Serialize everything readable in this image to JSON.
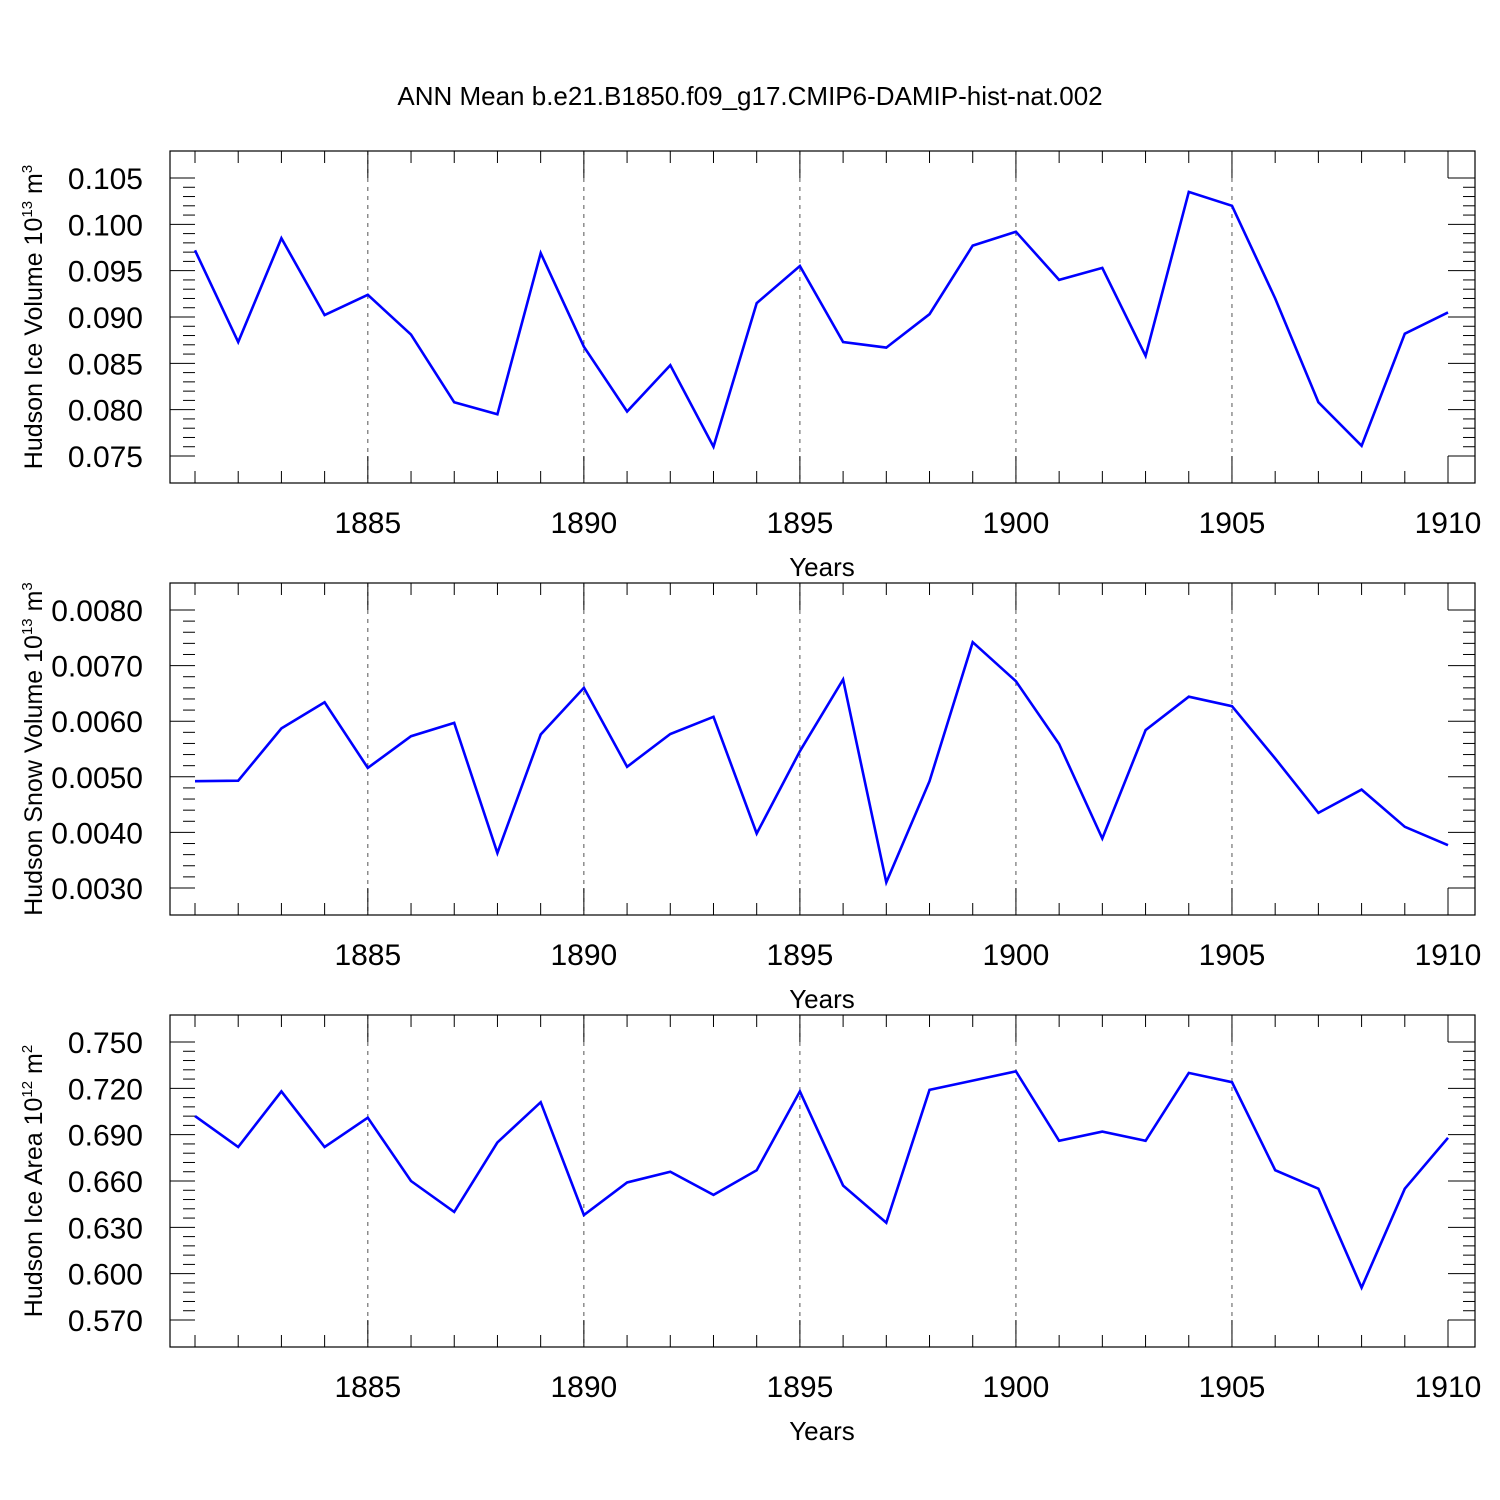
{
  "title": "ANN Mean b.e21.B1850.f09_g17.CMIP6-DAMIP-hist-nat.002",
  "chart_data": [
    {
      "type": "line",
      "ylabel": "Hudson Ice Volume 10",
      "ylabel_exp": "13",
      "ylabel_unit": " m",
      "ylabel_unit_exp": "3",
      "xlabel": "Years",
      "xlim": [
        1881,
        1910
      ],
      "ylim": [
        0.075,
        0.105
      ],
      "yticks": [
        0.075,
        0.08,
        0.085,
        0.09,
        0.095,
        0.1,
        0.105
      ],
      "ytick_labels": [
        "0.075",
        "0.080",
        "0.085",
        "0.090",
        "0.095",
        "0.100",
        "0.105"
      ],
      "xticks": [
        1885,
        1890,
        1895,
        1900,
        1905,
        1910
      ],
      "xtick_labels": [
        "1885",
        "1890",
        "1895",
        "1900",
        "1905",
        "1910"
      ],
      "grid": "vertical dashed at major x ticks",
      "color": "#0000ff",
      "x": [
        1881,
        1882,
        1883,
        1884,
        1885,
        1886,
        1887,
        1888,
        1889,
        1890,
        1891,
        1892,
        1893,
        1894,
        1895,
        1896,
        1897,
        1898,
        1899,
        1900,
        1901,
        1902,
        1903,
        1904,
        1905,
        1906,
        1907,
        1908,
        1909,
        1910
      ],
      "values": [
        0.0972,
        0.0873,
        0.0985,
        0.0902,
        0.0924,
        0.0881,
        0.0808,
        0.0795,
        0.0969,
        0.0868,
        0.0798,
        0.0848,
        0.076,
        0.0915,
        0.0955,
        0.0873,
        0.0867,
        0.0903,
        0.0977,
        0.0992,
        0.094,
        0.0953,
        0.0858,
        0.1035,
        0.102,
        0.092,
        0.0808,
        0.0761,
        0.0882,
        0.0905
      ]
    },
    {
      "type": "line",
      "ylabel": "Hudson Snow Volume 10",
      "ylabel_exp": "13",
      "ylabel_unit": " m",
      "ylabel_unit_exp": "3",
      "xlabel": "Years",
      "xlim": [
        1881,
        1910
      ],
      "ylim": [
        0.003,
        0.008
      ],
      "yticks": [
        0.003,
        0.004,
        0.005,
        0.006,
        0.007,
        0.008
      ],
      "ytick_labels": [
        "0.0030",
        "0.0040",
        "0.0050",
        "0.0060",
        "0.0070",
        "0.0080"
      ],
      "xticks": [
        1885,
        1890,
        1895,
        1900,
        1905,
        1910
      ],
      "xtick_labels": [
        "1885",
        "1890",
        "1895",
        "1900",
        "1905",
        "1910"
      ],
      "grid": "vertical dashed at major x ticks",
      "color": "#0000ff",
      "x": [
        1881,
        1882,
        1883,
        1884,
        1885,
        1886,
        1887,
        1888,
        1889,
        1890,
        1891,
        1892,
        1893,
        1894,
        1895,
        1896,
        1897,
        1898,
        1899,
        1900,
        1901,
        1902,
        1903,
        1904,
        1905,
        1906,
        1907,
        1908,
        1909,
        1910
      ],
      "values": [
        0.00492,
        0.00493,
        0.00587,
        0.00634,
        0.00516,
        0.00573,
        0.00597,
        0.00363,
        0.00576,
        0.0066,
        0.00518,
        0.00577,
        0.00608,
        0.00398,
        0.00546,
        0.00675,
        0.0031,
        0.00492,
        0.00742,
        0.00672,
        0.00559,
        0.00389,
        0.00584,
        0.00644,
        0.00627,
        0.00533,
        0.00435,
        0.00477,
        0.0041,
        0.00377
      ]
    },
    {
      "type": "line",
      "ylabel": "Hudson Ice Area 10",
      "ylabel_exp": "12",
      "ylabel_unit": " m",
      "ylabel_unit_exp": "2",
      "xlabel": "Years",
      "xlim": [
        1881,
        1910
      ],
      "ylim": [
        0.57,
        0.75
      ],
      "yticks": [
        0.57,
        0.6,
        0.63,
        0.66,
        0.69,
        0.72,
        0.75
      ],
      "ytick_labels": [
        "0.570",
        "0.600",
        "0.630",
        "0.660",
        "0.690",
        "0.720",
        "0.750"
      ],
      "xticks": [
        1885,
        1890,
        1895,
        1900,
        1905,
        1910
      ],
      "xtick_labels": [
        "1885",
        "1890",
        "1895",
        "1900",
        "1905",
        "1910"
      ],
      "grid": "vertical dashed at major x ticks",
      "color": "#0000ff",
      "x": [
        1881,
        1882,
        1883,
        1884,
        1885,
        1886,
        1887,
        1888,
        1889,
        1890,
        1891,
        1892,
        1893,
        1894,
        1895,
        1896,
        1897,
        1898,
        1899,
        1900,
        1901,
        1902,
        1903,
        1904,
        1905,
        1906,
        1907,
        1908,
        1909,
        1910
      ],
      "values": [
        0.702,
        0.682,
        0.718,
        0.682,
        0.701,
        0.66,
        0.64,
        0.685,
        0.711,
        0.638,
        0.659,
        0.666,
        0.651,
        0.667,
        0.718,
        0.657,
        0.633,
        0.719,
        0.725,
        0.731,
        0.686,
        0.692,
        0.686,
        0.73,
        0.724,
        0.667,
        0.655,
        0.591,
        0.655,
        0.688
      ]
    }
  ]
}
